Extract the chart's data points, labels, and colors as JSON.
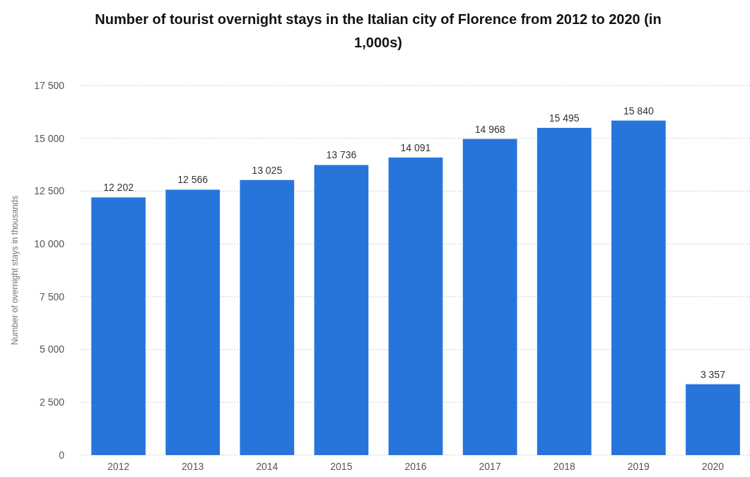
{
  "chart_data": {
    "type": "bar",
    "title": "Number of tourist overnight stays in the Italian city of Florence from 2012 to 2020 (in 1,000s)",
    "ylabel": "Number of overnight stays in thousands",
    "categories": [
      "2012",
      "2013",
      "2014",
      "2015",
      "2016",
      "2017",
      "2018",
      "2019",
      "2020"
    ],
    "values": [
      12202,
      12566,
      13025,
      13736,
      14091,
      14968,
      15495,
      15840,
      3357
    ],
    "value_labels": [
      "12 202",
      "12 566",
      "13 025",
      "13 736",
      "14 091",
      "14 968",
      "15 495",
      "15 840",
      "3 357"
    ],
    "color": "#2775db",
    "ylim": [
      0,
      17500
    ],
    "yticks": [
      {
        "value": 0,
        "label": "0"
      },
      {
        "value": 2500,
        "label": "2 500"
      },
      {
        "value": 5000,
        "label": "5 000"
      },
      {
        "value": 7500,
        "label": "7 500"
      },
      {
        "value": 10000,
        "label": "10 000"
      },
      {
        "value": 12500,
        "label": "12 500"
      },
      {
        "value": 15000,
        "label": "15 000"
      },
      {
        "value": 17500,
        "label": "17 500"
      }
    ],
    "grid": "y"
  }
}
